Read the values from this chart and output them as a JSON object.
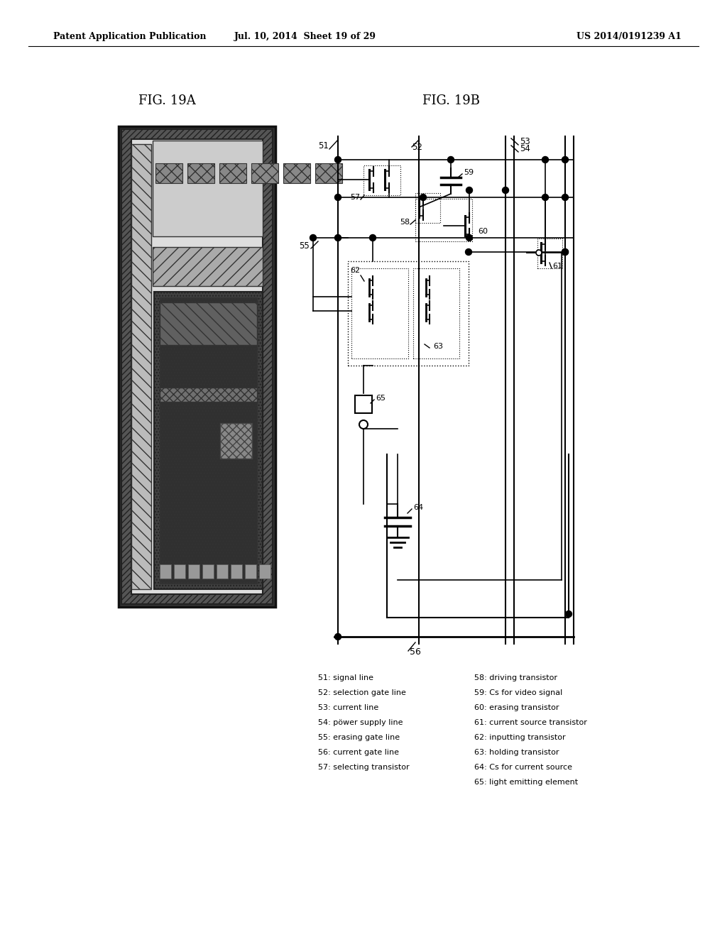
{
  "header_left": "Patent Application Publication",
  "header_mid": "Jul. 10, 2014  Sheet 19 of 29",
  "header_right": "US 2014/0191239 A1",
  "fig_label_A": "FIG. 19A",
  "fig_label_B": "FIG. 19B",
  "legend_col1": [
    "51: signal line",
    "52: selection gate line",
    "53: current line",
    "54: pöwer supply line",
    "55: erasing gate line",
    "56: current gate line",
    "57: selecting transistor"
  ],
  "legend_col2": [
    "58: driving transistor",
    "59: Cs for video signal",
    "60: erasing transistor",
    "61: current source transistor",
    "62: inputting transistor",
    "63: holding transistor",
    "64: Cs for current source",
    "65: light emitting element"
  ],
  "bg_color": "#ffffff",
  "line_color": "#000000"
}
